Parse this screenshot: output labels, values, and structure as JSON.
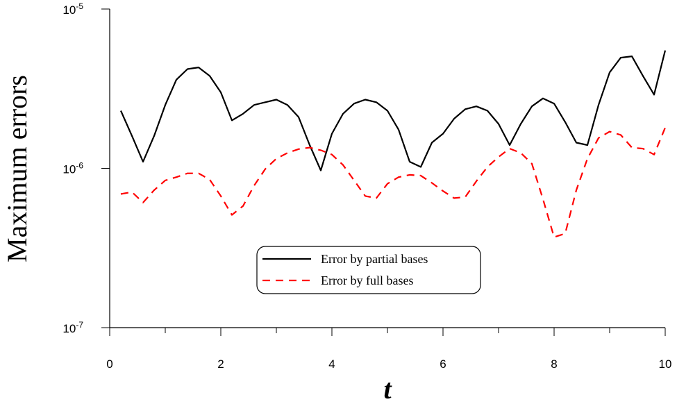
{
  "chart_data": {
    "type": "line",
    "xlabel": "t",
    "ylabel": "Maximum errors",
    "xlim": [
      0,
      10
    ],
    "ylim": [
      1e-07,
      1e-05
    ],
    "y_scale": "log",
    "grid": false,
    "legend_position": "lower-center",
    "x_ticks": [
      "0",
      "2",
      "4",
      "6",
      "8",
      "10"
    ],
    "y_ticks": [
      {
        "base": "10",
        "exp": "-7",
        "value": 1e-07
      },
      {
        "base": "10",
        "exp": "-6",
        "value": 1e-06
      },
      {
        "base": "10",
        "exp": "-5",
        "value": 1e-05
      }
    ],
    "series": [
      {
        "name": "Error by partial bases",
        "color": "#000000",
        "style": "solid",
        "x": [
          0.2,
          0.4,
          0.6,
          0.8,
          1.0,
          1.2,
          1.4,
          1.6,
          1.8,
          2.0,
          2.2,
          2.4,
          2.6,
          2.8,
          3.0,
          3.2,
          3.4,
          3.6,
          3.8,
          4.0,
          4.2,
          4.4,
          4.6,
          4.8,
          5.0,
          5.2,
          5.4,
          5.6,
          5.8,
          6.0,
          6.2,
          6.4,
          6.6,
          6.8,
          7.0,
          7.2,
          7.4,
          7.6,
          7.8,
          8.0,
          8.2,
          8.4,
          8.6,
          8.8,
          9.0,
          9.2,
          9.4,
          9.6,
          9.8,
          10.0
        ],
        "values": [
          2.3e-06,
          1.6e-06,
          1.1e-06,
          1.6e-06,
          2.5e-06,
          3.6e-06,
          4.2e-06,
          4.3e-06,
          3.8e-06,
          3e-06,
          2e-06,
          2.2e-06,
          2.5e-06,
          2.6e-06,
          2.7e-06,
          2.5e-06,
          2.1e-06,
          1.4e-06,
          9.7e-07,
          1.65e-06,
          2.2e-06,
          2.55e-06,
          2.7e-06,
          2.6e-06,
          2.3e-06,
          1.75e-06,
          1.1e-06,
          1.02e-06,
          1.45e-06,
          1.65e-06,
          2.05e-06,
          2.35e-06,
          2.45e-06,
          2.3e-06,
          1.9e-06,
          1.4e-06,
          1.9e-06,
          2.45e-06,
          2.75e-06,
          2.55e-06,
          1.95e-06,
          1.45e-06,
          1.4e-06,
          2.5e-06,
          4e-06,
          4.95e-06,
          5.05e-06,
          3.8e-06,
          2.9e-06,
          5.5e-06
        ]
      },
      {
        "name": "Error by full bases",
        "color": "#ff0000",
        "style": "dashed",
        "x": [
          0.2,
          0.4,
          0.6,
          0.8,
          1.0,
          1.2,
          1.4,
          1.6,
          1.8,
          2.0,
          2.2,
          2.4,
          2.6,
          2.8,
          3.0,
          3.2,
          3.4,
          3.6,
          3.8,
          4.0,
          4.2,
          4.4,
          4.6,
          4.8,
          5.0,
          5.2,
          5.4,
          5.6,
          5.8,
          6.0,
          6.2,
          6.4,
          6.6,
          6.8,
          7.0,
          7.2,
          7.4,
          7.6,
          7.8,
          8.0,
          8.2,
          8.4,
          8.6,
          8.8,
          9.0,
          9.2,
          9.4,
          9.6,
          9.8,
          10.0
        ],
        "values": [
          6.9e-07,
          7.1e-07,
          6.1e-07,
          7.3e-07,
          8.4e-07,
          8.8e-07,
          9.3e-07,
          9.3e-07,
          8.5e-07,
          6.7e-07,
          5.1e-07,
          5.8e-07,
          7.8e-07,
          9.9e-07,
          1.15e-06,
          1.25e-06,
          1.32e-06,
          1.35e-06,
          1.3e-06,
          1.22e-06,
          1.05e-06,
          8.4e-07,
          6.7e-07,
          6.5e-07,
          8e-07,
          8.8e-07,
          9.1e-07,
          9e-07,
          8.1e-07,
          7.2e-07,
          6.5e-07,
          6.6e-07,
          8.3e-07,
          1.02e-06,
          1.18e-06,
          1.33e-06,
          1.25e-06,
          1.07e-06,
          6.4e-07,
          3.7e-07,
          3.9e-07,
          7.3e-07,
          1.15e-06,
          1.55e-06,
          1.7e-06,
          1.62e-06,
          1.35e-06,
          1.33e-06,
          1.22e-06,
          1.8e-06
        ]
      }
    ]
  }
}
